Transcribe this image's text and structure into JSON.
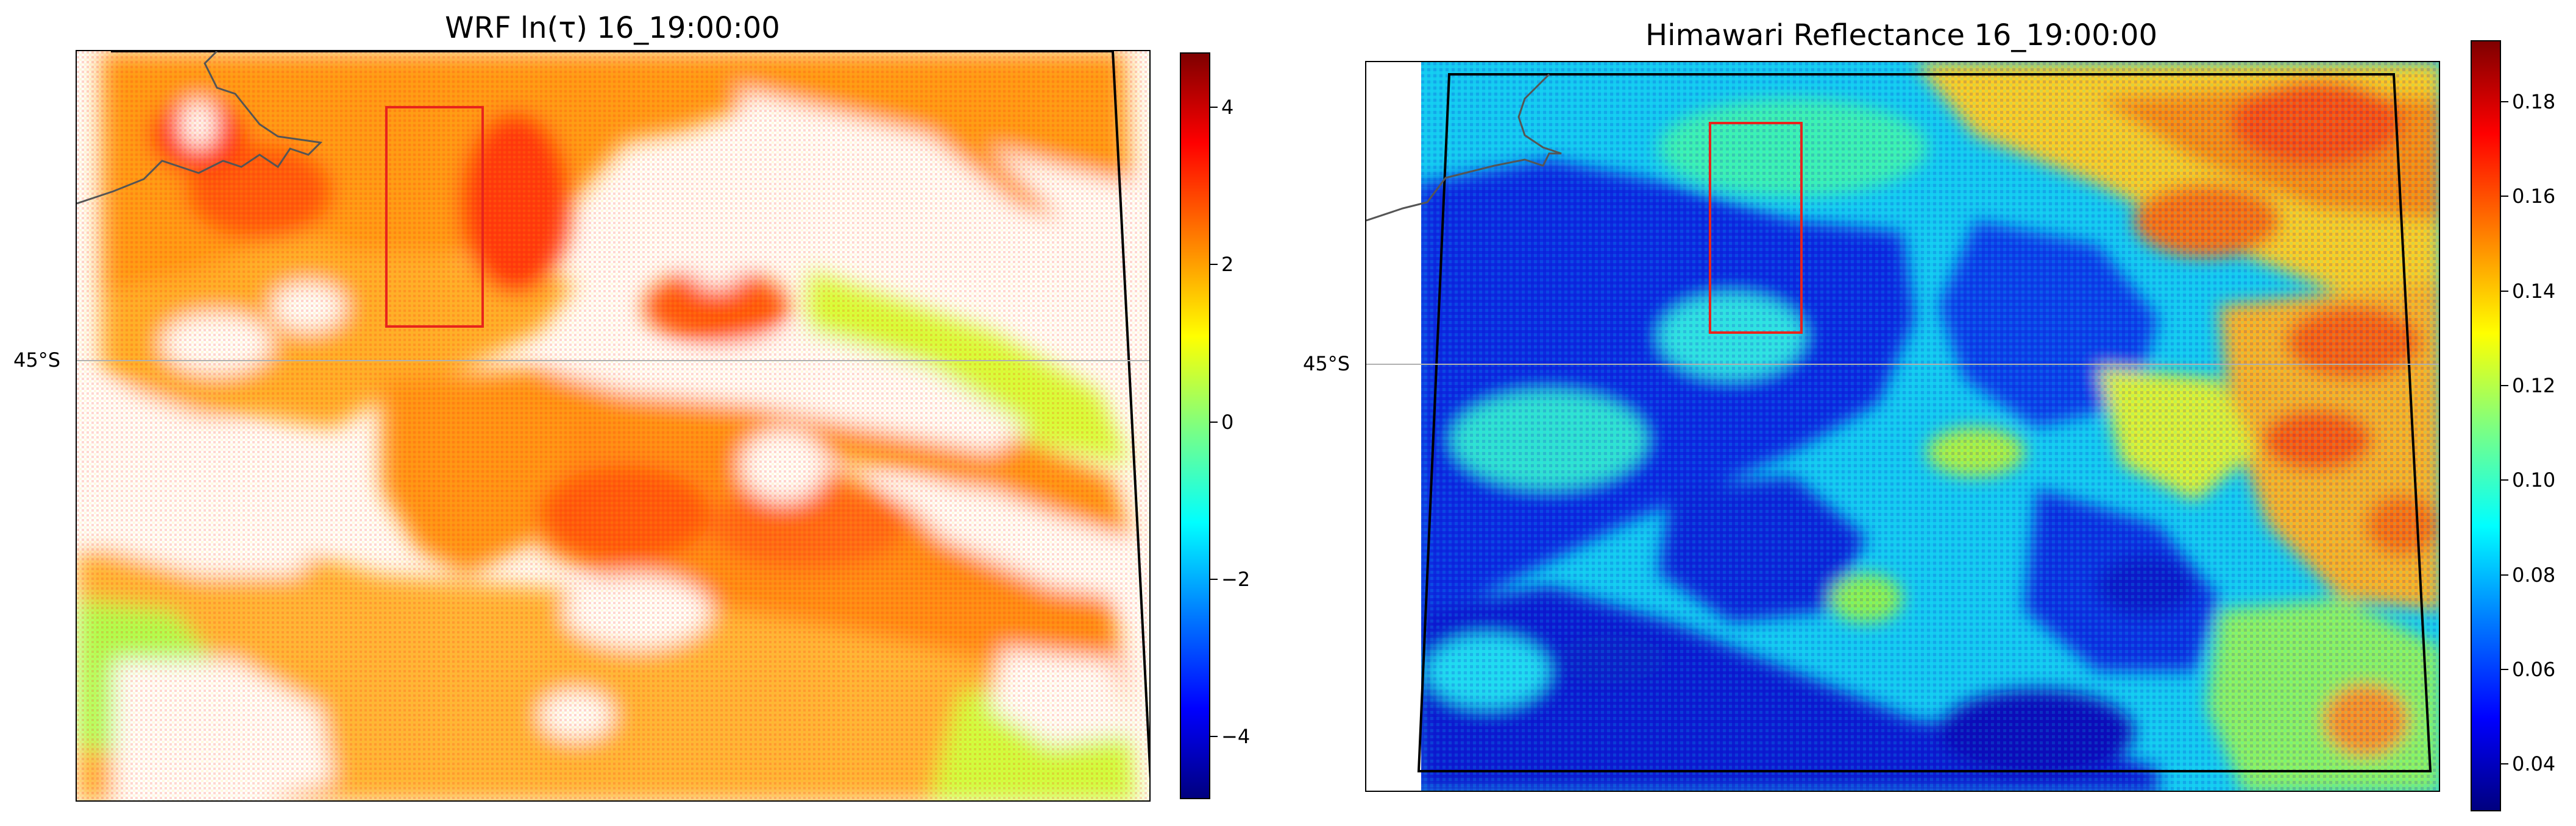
{
  "chart_data": [
    {
      "type": "heatmap",
      "title": "WRF ln(τ) 16_19:00:00",
      "lat_label": "45°S",
      "colormap": "jet",
      "colorbar": {
        "ticks": [
          4,
          2,
          0,
          -2,
          -4
        ],
        "tick_labels": [
          "4",
          "2",
          "0",
          "−2",
          "−4"
        ],
        "range": [
          -4.8,
          4.7
        ]
      },
      "region_box_color": "#e8231c",
      "coastline_color": "#555555",
      "missing_color": "#ffffff"
    },
    {
      "type": "heatmap",
      "title": "Himawari Reflectance 16_19:00:00",
      "lat_label": "45°S",
      "colormap": "jet",
      "colorbar": {
        "ticks": [
          0.18,
          0.16,
          0.14,
          0.12,
          0.1,
          0.08,
          0.06,
          0.04
        ],
        "tick_labels": [
          "0.18",
          "0.16",
          "0.14",
          "0.12",
          "0.10",
          "0.08",
          "0.06",
          "0.04"
        ],
        "range": [
          0.03,
          0.193
        ]
      },
      "region_box_color": "#e8231c",
      "coastline_color": "#555555"
    }
  ]
}
